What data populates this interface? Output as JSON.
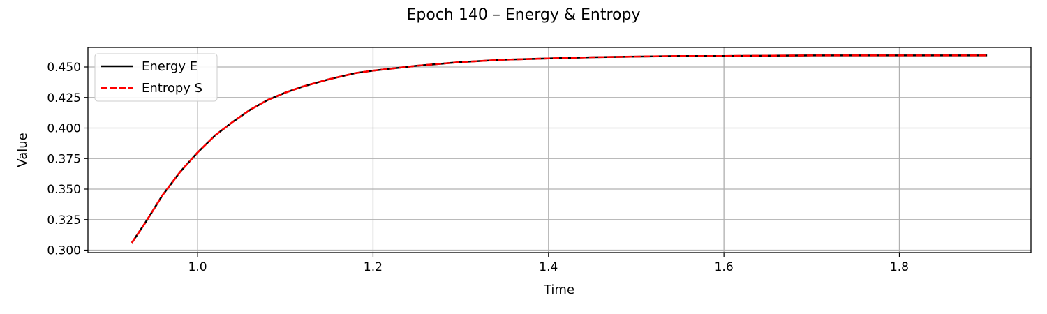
{
  "chart_data": {
    "type": "line",
    "title": "Epoch 140 – Energy & Entropy",
    "xlabel": "Time",
    "ylabel": "Value",
    "xlim": [
      0.875,
      1.95
    ],
    "ylim": [
      0.298,
      0.466
    ],
    "xticks": [
      1.0,
      1.2,
      1.4,
      1.6,
      1.8
    ],
    "xtick_labels": [
      "1.0",
      "1.2",
      "1.4",
      "1.6",
      "1.8"
    ],
    "yticks": [
      0.3,
      0.325,
      0.35,
      0.375,
      0.4,
      0.425,
      0.45
    ],
    "ytick_labels": [
      "0.300",
      "0.325",
      "0.350",
      "0.375",
      "0.400",
      "0.425",
      "0.450"
    ],
    "grid": true,
    "legend_position": "top-left",
    "x": [
      0.925,
      0.94,
      0.96,
      0.98,
      1.0,
      1.02,
      1.04,
      1.06,
      1.08,
      1.1,
      1.12,
      1.15,
      1.18,
      1.2,
      1.25,
      1.3,
      1.35,
      1.4,
      1.45,
      1.5,
      1.55,
      1.6,
      1.7,
      1.8,
      1.9
    ],
    "series": [
      {
        "name": "Energy E",
        "color": "#000000",
        "style": "solid",
        "values": [
          0.306,
          0.322,
          0.345,
          0.364,
          0.38,
          0.394,
          0.405,
          0.415,
          0.423,
          0.429,
          0.434,
          0.44,
          0.445,
          0.447,
          0.451,
          0.454,
          0.456,
          0.457,
          0.458,
          0.4585,
          0.459,
          0.459,
          0.4595,
          0.4595,
          0.4595
        ]
      },
      {
        "name": "Entropy S",
        "color": "#ff0000",
        "style": "dashed",
        "values": [
          0.306,
          0.322,
          0.345,
          0.364,
          0.38,
          0.394,
          0.405,
          0.415,
          0.423,
          0.429,
          0.434,
          0.44,
          0.445,
          0.447,
          0.451,
          0.454,
          0.456,
          0.457,
          0.458,
          0.4585,
          0.459,
          0.459,
          0.4595,
          0.4595,
          0.4595
        ]
      }
    ]
  }
}
